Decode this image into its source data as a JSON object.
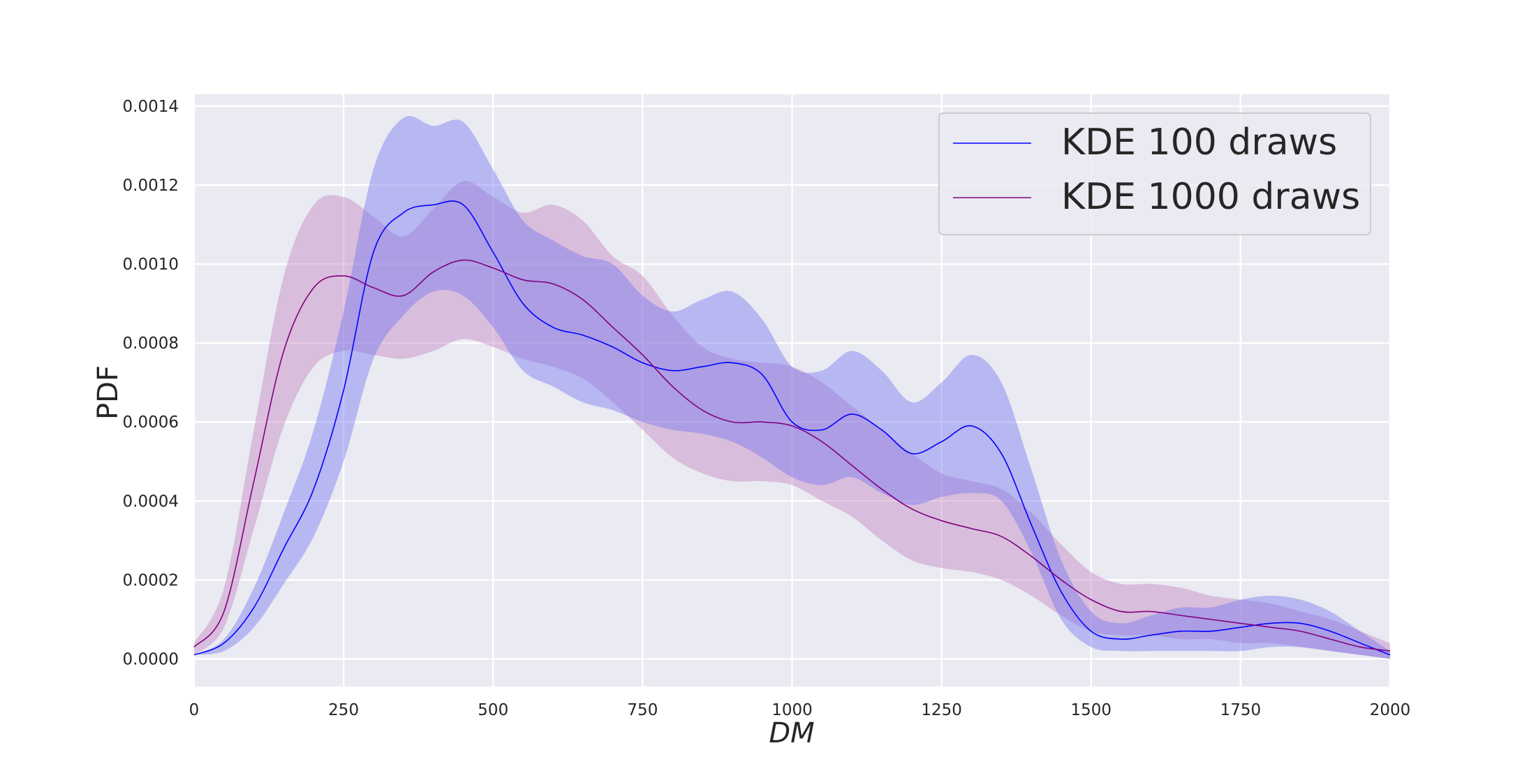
{
  "chart_data": {
    "type": "area",
    "title": "",
    "xlabel": "DM",
    "ylabel": "PDF",
    "xlim": [
      0,
      2000
    ],
    "ylim": [
      -7e-05,
      0.00143
    ],
    "xticks": [
      0,
      250,
      500,
      750,
      1000,
      1250,
      1500,
      1750,
      2000
    ],
    "yticks": [
      0.0,
      0.0002,
      0.0004,
      0.0006,
      0.0008,
      0.001,
      0.0012,
      0.0014
    ],
    "ytick_labels": [
      "0.0000",
      "0.0002",
      "0.0004",
      "0.0006",
      "0.0008",
      "0.0010",
      "0.0012",
      "0.0014"
    ],
    "grid": true,
    "legend_position": "top-right",
    "background_color": "#eaeaf2",
    "series": [
      {
        "name": "KDE 100 draws",
        "color": "#0000ff",
        "band_color": "#6f6ff0",
        "x": [
          0,
          50,
          100,
          150,
          200,
          250,
          300,
          350,
          400,
          450,
          500,
          550,
          600,
          650,
          700,
          750,
          800,
          850,
          900,
          950,
          1000,
          1050,
          1100,
          1150,
          1200,
          1250,
          1300,
          1350,
          1400,
          1450,
          1500,
          1550,
          1600,
          1650,
          1700,
          1750,
          1800,
          1850,
          1900,
          1950,
          2000
        ],
        "y": [
          1e-05,
          4e-05,
          0.00013,
          0.00028,
          0.00043,
          0.00068,
          0.00103,
          0.00113,
          0.00115,
          0.00115,
          0.00103,
          0.0009,
          0.00084,
          0.00082,
          0.00079,
          0.00075,
          0.00073,
          0.00074,
          0.00075,
          0.00072,
          0.0006,
          0.00058,
          0.00062,
          0.00058,
          0.00052,
          0.00055,
          0.00059,
          0.00052,
          0.00034,
          0.00017,
          7e-05,
          5e-05,
          6e-05,
          7e-05,
          7e-05,
          8e-05,
          9e-05,
          9e-05,
          7e-05,
          4e-05,
          1e-05
        ],
        "lower": [
          1e-05,
          2e-05,
          8e-05,
          0.00019,
          0.00031,
          0.0005,
          0.00076,
          0.00087,
          0.00093,
          0.00092,
          0.00084,
          0.00073,
          0.00069,
          0.00065,
          0.00063,
          0.0006,
          0.00058,
          0.00057,
          0.00055,
          0.00051,
          0.00046,
          0.00044,
          0.00046,
          0.00042,
          0.00039,
          0.00041,
          0.00042,
          0.0004,
          0.00027,
          0.0001,
          3e-05,
          2e-05,
          2e-05,
          2e-05,
          2e-05,
          2e-05,
          3e-05,
          3e-05,
          2e-05,
          1e-05,
          0.0
        ],
        "upper": [
          1e-05,
          5e-05,
          0.00018,
          0.00037,
          0.00058,
          0.00088,
          0.00124,
          0.00137,
          0.00135,
          0.00136,
          0.00124,
          0.00111,
          0.00106,
          0.00102,
          0.001,
          0.00092,
          0.00088,
          0.00091,
          0.00093,
          0.00086,
          0.00074,
          0.00073,
          0.00078,
          0.00073,
          0.00065,
          0.0007,
          0.00077,
          0.0007,
          0.00048,
          0.00025,
          0.00012,
          9e-05,
          0.00011,
          0.00013,
          0.00013,
          0.00015,
          0.00016,
          0.00015,
          0.00012,
          7e-05,
          2e-05
        ]
      },
      {
        "name": "KDE 1000 draws",
        "color": "#800080",
        "band_color": "#bf7fbf",
        "x": [
          0,
          50,
          100,
          150,
          200,
          250,
          300,
          350,
          400,
          450,
          500,
          550,
          600,
          650,
          700,
          750,
          800,
          850,
          900,
          950,
          1000,
          1050,
          1100,
          1150,
          1200,
          1250,
          1300,
          1350,
          1400,
          1450,
          1500,
          1550,
          1600,
          1650,
          1700,
          1750,
          1800,
          1850,
          1900,
          1950,
          2000
        ],
        "y": [
          3e-05,
          0.00012,
          0.00045,
          0.00078,
          0.00094,
          0.00097,
          0.00094,
          0.00092,
          0.00098,
          0.00101,
          0.00099,
          0.00096,
          0.00095,
          0.00091,
          0.00084,
          0.00077,
          0.00069,
          0.00063,
          0.0006,
          0.0006,
          0.00059,
          0.00055,
          0.00049,
          0.00043,
          0.00038,
          0.00035,
          0.00033,
          0.00031,
          0.00026,
          0.0002,
          0.00015,
          0.00012,
          0.00012,
          0.00011,
          0.0001,
          9e-05,
          8e-05,
          7e-05,
          5e-05,
          3e-05,
          2e-05
        ],
        "lower": [
          1e-05,
          8e-05,
          0.00033,
          0.00059,
          0.00074,
          0.00078,
          0.00077,
          0.00076,
          0.00078,
          0.00081,
          0.00079,
          0.00076,
          0.00074,
          0.00071,
          0.00065,
          0.00058,
          0.00051,
          0.00047,
          0.00045,
          0.00045,
          0.00044,
          0.0004,
          0.00036,
          0.0003,
          0.00025,
          0.00023,
          0.00022,
          0.0002,
          0.00016,
          0.00011,
          7e-05,
          6e-05,
          6e-05,
          5e-05,
          5e-05,
          4e-05,
          4e-05,
          3e-05,
          2e-05,
          1e-05,
          0.0
        ],
        "upper": [
          4e-05,
          0.00018,
          0.00058,
          0.00097,
          0.00115,
          0.00117,
          0.00112,
          0.00107,
          0.00114,
          0.00121,
          0.00117,
          0.00113,
          0.00115,
          0.00111,
          0.00102,
          0.00097,
          0.00087,
          0.00079,
          0.00076,
          0.00075,
          0.00074,
          0.0007,
          0.00064,
          0.00058,
          0.00052,
          0.00047,
          0.00045,
          0.00043,
          0.00037,
          0.00029,
          0.00022,
          0.00019,
          0.00019,
          0.00018,
          0.00016,
          0.00015,
          0.00014,
          0.00012,
          0.0001,
          7e-05,
          4e-05
        ]
      }
    ]
  }
}
